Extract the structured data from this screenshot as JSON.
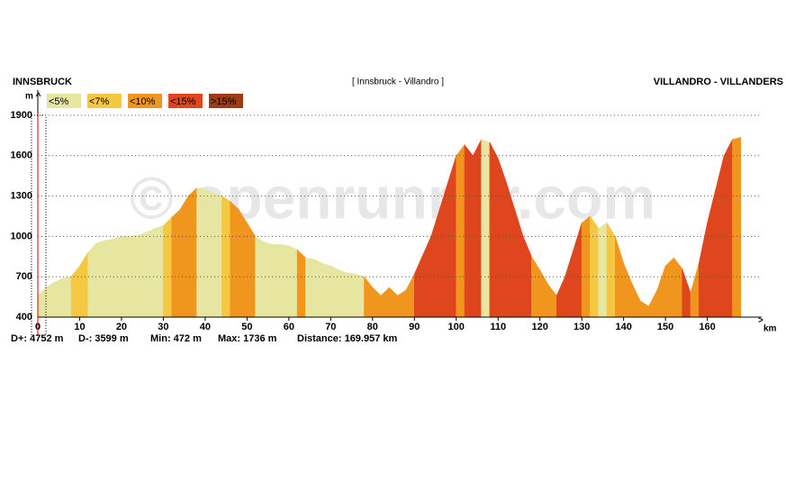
{
  "chart_data": {
    "type": "profile",
    "title_left": "INNSBRUCK",
    "title_center": "[ Innsbruck - Villandro ]",
    "title_right": "VILLANDRO - VILLANDERS",
    "y_label": "m ^",
    "x_label": "km",
    "x_arrow": ">",
    "watermark": "© openrunner.com",
    "stats": [
      "D+: 4752 m",
      "D-: 3599 m",
      "Min: 472 m",
      "Max: 1736 m",
      "Distance: 169.957 km"
    ],
    "legend": [
      {
        "label": "<5%",
        "color": "#e6e6a0"
      },
      {
        "label": "<7%",
        "color": "#f5c842"
      },
      {
        "label": "<10%",
        "color": "#f0961e"
      },
      {
        "label": "<15%",
        "color": "#e0461e"
      },
      {
        "label": ">15%",
        "color": "#9c3c14"
      }
    ],
    "x": [
      0,
      2,
      4,
      6,
      8,
      10,
      12,
      14,
      16,
      18,
      20,
      22,
      24,
      26,
      28,
      30,
      32,
      34,
      36,
      38,
      40,
      42,
      44,
      46,
      48,
      50,
      52,
      54,
      56,
      58,
      60,
      62,
      64,
      66,
      68,
      70,
      72,
      74,
      76,
      78,
      80,
      82,
      84,
      86,
      88,
      90,
      92,
      94,
      96,
      98,
      100,
      102,
      104,
      106,
      108,
      110,
      112,
      114,
      116,
      118,
      120,
      122,
      124,
      126,
      128,
      130,
      132,
      134,
      136,
      138,
      140,
      142,
      144,
      146,
      148,
      150,
      152,
      154,
      156,
      158,
      160,
      162,
      164,
      166,
      168
    ],
    "values": [
      560,
      620,
      660,
      690,
      700,
      780,
      880,
      950,
      970,
      980,
      1000,
      1000,
      1010,
      1030,
      1060,
      1080,
      1140,
      1200,
      1300,
      1360,
      1350,
      1320,
      1300,
      1260,
      1200,
      1100,
      1000,
      960,
      940,
      940,
      930,
      900,
      840,
      830,
      800,
      780,
      750,
      730,
      720,
      700,
      620,
      560,
      620,
      560,
      600,
      720,
      860,
      1000,
      1200,
      1400,
      1600,
      1680,
      1600,
      1720,
      1700,
      1580,
      1400,
      1200,
      1000,
      850,
      750,
      640,
      560,
      700,
      900,
      1100,
      1150,
      1060,
      1100,
      1000,
      800,
      650,
      520,
      480,
      600,
      780,
      840,
      760,
      580,
      800,
      1100,
      1350,
      1600,
      1720,
      1736
    ],
    "segment_colors": [
      "#e6e6a0",
      "#e6e6a0",
      "#e6e6a0",
      "#e6e6a0",
      "#f5c842",
      "#f5c842",
      "#e6e6a0",
      "#e6e6a0",
      "#e6e6a0",
      "#e6e6a0",
      "#e6e6a0",
      "#e6e6a0",
      "#e6e6a0",
      "#e6e6a0",
      "#e6e6a0",
      "#f5c842",
      "#f0961e",
      "#f0961e",
      "#f0961e",
      "#e6e6a0",
      "#e6e6a0",
      "#e6e6a0",
      "#f5c842",
      "#f0961e",
      "#f0961e",
      "#f0961e",
      "#e6e6a0",
      "#e6e6a0",
      "#e6e6a0",
      "#e6e6a0",
      "#e6e6a0",
      "#f0961e",
      "#e6e6a0",
      "#e6e6a0",
      "#e6e6a0",
      "#e6e6a0",
      "#e6e6a0",
      "#e6e6a0",
      "#e6e6a0",
      "#f0961e",
      "#f0961e",
      "#f0961e",
      "#f0961e",
      "#f0961e",
      "#f0961e",
      "#e0461e",
      "#e0461e",
      "#e0461e",
      "#e0461e",
      "#e0461e",
      "#f0961e",
      "#e0461e",
      "#e0461e",
      "#e6e6a0",
      "#e0461e",
      "#e0461e",
      "#e0461e",
      "#e0461e",
      "#e0461e",
      "#f0961e",
      "#f0961e",
      "#f0961e",
      "#e0461e",
      "#e0461e",
      "#e0461e",
      "#f0961e",
      "#f5c842",
      "#e6e6a0",
      "#f5c842",
      "#f0961e",
      "#f0961e",
      "#f0961e",
      "#f0961e",
      "#f0961e",
      "#f0961e",
      "#f0961e",
      "#f0961e",
      "#e0461e",
      "#f0961e",
      "#e0461e",
      "#e0461e",
      "#e0461e",
      "#e0461e",
      "#f0961e"
    ],
    "xlim": [
      0,
      173
    ],
    "ylim": [
      400,
      1900
    ],
    "xticks": [
      0,
      10,
      20,
      30,
      40,
      50,
      60,
      70,
      80,
      90,
      100,
      110,
      120,
      130,
      140,
      150,
      160
    ],
    "yticks": [
      400,
      700,
      1000,
      1300,
      1600,
      1900
    ],
    "grid": true
  }
}
